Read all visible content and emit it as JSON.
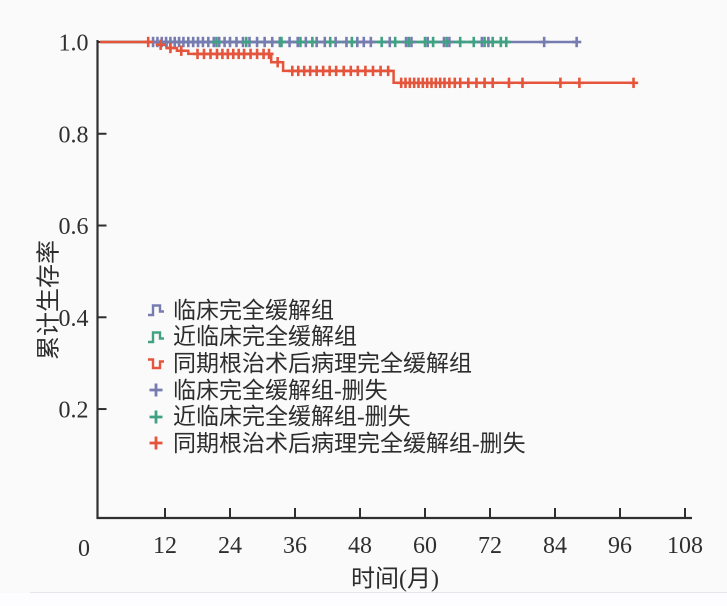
{
  "page": {
    "background": "#fbfafb",
    "divider_color": "#e9e4e9"
  },
  "chart_data": {
    "type": "line",
    "subtype": "kaplan_meier_step_survival",
    "title": "",
    "xlabel": "时间(月)",
    "ylabel": "累计生存率",
    "xlim": [
      0,
      108
    ],
    "ylim": [
      0,
      1.04
    ],
    "xticks": [
      0,
      12,
      24,
      36,
      48,
      60,
      72,
      84,
      96,
      108
    ],
    "yticks": [
      {
        "v": 1.0,
        "label": "1.0"
      },
      {
        "v": 0.8,
        "label": "0.8"
      },
      {
        "v": 0.6,
        "label": "0.6"
      },
      {
        "v": 0.4,
        "label": "0.4"
      },
      {
        "v": 0.2,
        "label": "0.2"
      }
    ],
    "origin_label": "0",
    "grid": false,
    "axis_color": "#2f2f2f",
    "legend": {
      "position": "inside-left-middle",
      "items": [
        {
          "label": "临床完全缓解组",
          "marker": "step",
          "color": "#767cb0"
        },
        {
          "label": "近临床完全缓解组",
          "marker": "step",
          "color": "#41a183"
        },
        {
          "label": "同期根治术后病理完全缓解组",
          "marker": "step-down",
          "color": "#e4553c"
        },
        {
          "label": "临床完全缓解组-删失",
          "marker": "plus",
          "color": "#767cb0"
        },
        {
          "label": "近临床完全缓解组-删失",
          "marker": "plus",
          "color": "#41a183"
        },
        {
          "label": "同期根治术后病理完全缓解组-删失",
          "marker": "plus",
          "color": "#e4553c"
        }
      ]
    },
    "series": [
      {
        "name": "临床完全缓解组",
        "color": "#767cb0",
        "points": [
          [
            0,
            1.0
          ],
          [
            88,
            1.0
          ]
        ],
        "censors": [
          [
            9.8,
            1
          ],
          [
            10.6,
            1
          ],
          [
            11.4,
            1
          ],
          [
            12.2,
            1
          ],
          [
            13,
            1
          ],
          [
            13.8,
            1
          ],
          [
            14.6,
            1
          ],
          [
            15.4,
            1
          ],
          [
            16.3,
            1
          ],
          [
            17.2,
            1
          ],
          [
            18.1,
            1
          ],
          [
            19,
            1
          ],
          [
            20,
            1
          ],
          [
            21,
            1
          ],
          [
            22,
            1
          ],
          [
            23,
            1
          ],
          [
            24,
            1
          ],
          [
            25.2,
            1
          ],
          [
            26.4,
            1
          ],
          [
            27.6,
            1
          ],
          [
            29,
            1
          ],
          [
            30.4,
            1
          ],
          [
            31.8,
            1
          ],
          [
            33.2,
            1
          ],
          [
            35,
            1
          ],
          [
            36.5,
            1
          ],
          [
            38,
            1
          ],
          [
            40,
            1
          ],
          [
            41.5,
            1
          ],
          [
            43.5,
            1
          ],
          [
            45.5,
            1
          ],
          [
            47.5,
            1
          ],
          [
            48.7,
            1
          ],
          [
            50,
            1
          ],
          [
            53.5,
            1
          ],
          [
            56.5,
            1
          ],
          [
            57.5,
            1
          ],
          [
            60.5,
            1
          ],
          [
            63.5,
            1
          ],
          [
            64.5,
            1
          ],
          [
            70.5,
            1
          ],
          [
            71.7,
            1
          ],
          [
            82,
            1
          ],
          [
            88,
            1
          ]
        ]
      },
      {
        "name": "近临床完全缓解组",
        "color": "#41a183",
        "points": [
          [
            0,
            1.0
          ],
          [
            75,
            1.0
          ]
        ],
        "censors": [
          [
            21.5,
            1
          ],
          [
            27,
            1
          ],
          [
            33.5,
            1
          ],
          [
            37,
            1
          ],
          [
            39.2,
            1
          ],
          [
            42.5,
            1
          ],
          [
            46.5,
            1
          ],
          [
            52,
            1
          ],
          [
            54.5,
            1
          ],
          [
            57,
            1
          ],
          [
            60,
            1
          ],
          [
            61.5,
            1
          ],
          [
            64,
            1
          ],
          [
            66.5,
            1
          ],
          [
            69,
            1
          ],
          [
            71,
            1
          ],
          [
            72.5,
            1
          ],
          [
            74,
            1
          ],
          [
            75,
            1
          ]
        ]
      },
      {
        "name": "同期根治术后病理完全缓解组",
        "color": "#e4553c",
        "points": [
          [
            0,
            1.0
          ],
          [
            10.5,
            1.0
          ],
          [
            10.5,
            0.994
          ],
          [
            12.3,
            0.994
          ],
          [
            12.3,
            0.987
          ],
          [
            14.2,
            0.987
          ],
          [
            14.2,
            0.981
          ],
          [
            16.3,
            0.981
          ],
          [
            16.3,
            0.974
          ],
          [
            31.6,
            0.974
          ],
          [
            31.6,
            0.956
          ],
          [
            33.8,
            0.956
          ],
          [
            33.8,
            0.937
          ],
          [
            54.2,
            0.937
          ],
          [
            54.2,
            0.911
          ],
          [
            98.5,
            0.911
          ]
        ],
        "censors": [
          [
            8.9,
            1
          ],
          [
            11.2,
            0.994
          ],
          [
            13,
            0.987
          ],
          [
            15,
            0.981
          ],
          [
            18,
            0.974
          ],
          [
            19.2,
            0.974
          ],
          [
            20.4,
            0.974
          ],
          [
            21.6,
            0.974
          ],
          [
            22.6,
            0.974
          ],
          [
            23.6,
            0.974
          ],
          [
            24.6,
            0.974
          ],
          [
            25.6,
            0.974
          ],
          [
            26.6,
            0.974
          ],
          [
            27.8,
            0.974
          ],
          [
            29,
            0.974
          ],
          [
            30.2,
            0.974
          ],
          [
            31.2,
            0.974
          ],
          [
            32.8,
            0.956
          ],
          [
            35.5,
            0.937
          ],
          [
            36.6,
            0.937
          ],
          [
            37.7,
            0.937
          ],
          [
            38.8,
            0.937
          ],
          [
            40,
            0.937
          ],
          [
            41.2,
            0.937
          ],
          [
            42.4,
            0.937
          ],
          [
            43.6,
            0.937
          ],
          [
            45,
            0.937
          ],
          [
            46.3,
            0.937
          ],
          [
            47.6,
            0.937
          ],
          [
            49,
            0.937
          ],
          [
            50.4,
            0.937
          ],
          [
            51.8,
            0.937
          ],
          [
            53.2,
            0.937
          ],
          [
            55.6,
            0.911
          ],
          [
            56.4,
            0.911
          ],
          [
            57.2,
            0.911
          ],
          [
            58,
            0.911
          ],
          [
            58.8,
            0.911
          ],
          [
            59.6,
            0.911
          ],
          [
            60.4,
            0.911
          ],
          [
            61.2,
            0.911
          ],
          [
            62,
            0.911
          ],
          [
            62.8,
            0.911
          ],
          [
            63.6,
            0.911
          ],
          [
            64.5,
            0.911
          ],
          [
            65.5,
            0.911
          ],
          [
            66.5,
            0.911
          ],
          [
            68,
            0.911
          ],
          [
            69.5,
            0.911
          ],
          [
            71,
            0.911
          ],
          [
            72.5,
            0.911
          ],
          [
            75.5,
            0.911
          ],
          [
            78,
            0.911
          ],
          [
            85,
            0.911
          ],
          [
            88.5,
            0.911
          ],
          [
            98.5,
            0.911
          ]
        ]
      }
    ]
  }
}
